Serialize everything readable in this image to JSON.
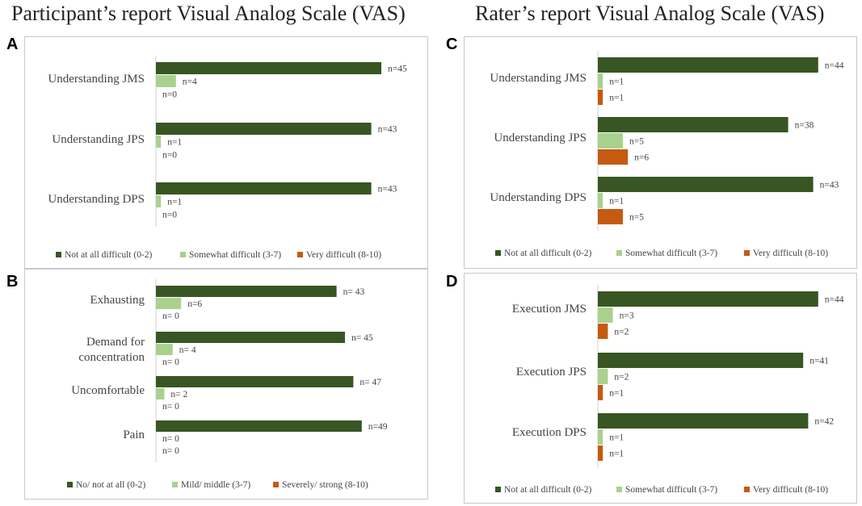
{
  "titles": {
    "left": "Participant’s report Visual Analog Scale (VAS)",
    "right": "Rater’s report Visual Analog Scale (VAS)"
  },
  "colors": {
    "dark": "#375623",
    "light": "#a9d18e",
    "orange": "#c55a11"
  },
  "chart_data": [
    {
      "panel": "A",
      "type": "bar",
      "orientation": "horizontal",
      "categories": [
        "Understanding JMS",
        "Understanding JPS",
        "Understanding DPS"
      ],
      "series": [
        {
          "name": "Not at all difficult (0-2)",
          "values": [
            45,
            43,
            43
          ],
          "labels": [
            "n=45",
            "n=43",
            "n=43"
          ]
        },
        {
          "name": "Somewhat difficult (3-7)",
          "values": [
            4,
            1,
            1
          ],
          "labels": [
            "n=4",
            "n=1",
            "n=1"
          ]
        },
        {
          "name": "Very difficult (8-10)",
          "values": [
            0,
            0,
            0
          ],
          "labels": [
            "n=0",
            "n=0",
            "n=0"
          ]
        }
      ],
      "legend": [
        "Not at all difficult (0-2)",
        "Somewhat difficult (3-7)",
        "Very difficult (8-10)"
      ],
      "xlim": [
        0,
        50
      ]
    },
    {
      "panel": "B",
      "type": "bar",
      "orientation": "horizontal",
      "categories": [
        "Exhausting",
        "Demand for concentration",
        "Uncomfortable",
        "Pain"
      ],
      "series": [
        {
          "name": "No/ not at all (0-2)",
          "values": [
            43,
            45,
            47,
            49
          ],
          "labels": [
            "n= 43",
            "n= 45",
            "n= 47",
            "n=49"
          ]
        },
        {
          "name": "Mild/ middle (3-7)",
          "values": [
            6,
            4,
            2,
            0
          ],
          "labels": [
            "n=6",
            "n= 4",
            "n= 2",
            "n= 0"
          ]
        },
        {
          "name": "Severely/ strong (8-10)",
          "values": [
            0,
            0,
            0,
            0
          ],
          "labels": [
            "n= 0",
            "n= 0",
            "n= 0",
            "n= 0"
          ]
        }
      ],
      "legend": [
        "No/ not at all (0-2)",
        "Mild/ middle (3-7)",
        "Severely/ strong (8-10)"
      ],
      "xlim": [
        0,
        50
      ]
    },
    {
      "panel": "C",
      "type": "bar",
      "orientation": "horizontal",
      "categories": [
        "Understanding JMS",
        "Understanding JPS",
        "Understanding DPS"
      ],
      "series": [
        {
          "name": "Not at all difficult (0-2)",
          "values": [
            44,
            38,
            43
          ],
          "labels": [
            "n=44",
            "n=38",
            "n=43"
          ]
        },
        {
          "name": "Somewhat difficult (3-7)",
          "values": [
            1,
            5,
            1
          ],
          "labels": [
            "n=1",
            "n=5",
            "n=1"
          ]
        },
        {
          "name": "Very difficult (8-10)",
          "values": [
            1,
            6,
            5
          ],
          "labels": [
            "n=1",
            "n=6",
            "n=5"
          ]
        }
      ],
      "legend": [
        "Not at all difficult (0-2)",
        "Somewhat  difficult (3-7)",
        "Very difficult (8-10)"
      ],
      "xlim": [
        0,
        46
      ]
    },
    {
      "panel": "D",
      "type": "bar",
      "orientation": "horizontal",
      "categories": [
        "Execution JMS",
        "Execution JPS",
        "Execution DPS"
      ],
      "series": [
        {
          "name": "Not at all difficult (0-2)",
          "values": [
            44,
            41,
            42
          ],
          "labels": [
            "n=44",
            "n=41",
            "n=42"
          ]
        },
        {
          "name": "Somewhat difficult (3-7)",
          "values": [
            3,
            2,
            1
          ],
          "labels": [
            "n=3",
            "n=2",
            "n=1"
          ]
        },
        {
          "name": "Very difficult (8-10)",
          "values": [
            2,
            1,
            1
          ],
          "labels": [
            "n=2",
            "n=1",
            "n=1"
          ]
        }
      ],
      "legend": [
        "Not at all difficult (0-2)",
        "Somewhat difficult (3-7)",
        "Very difficult (8-10)"
      ],
      "xlim": [
        0,
        46
      ]
    }
  ]
}
